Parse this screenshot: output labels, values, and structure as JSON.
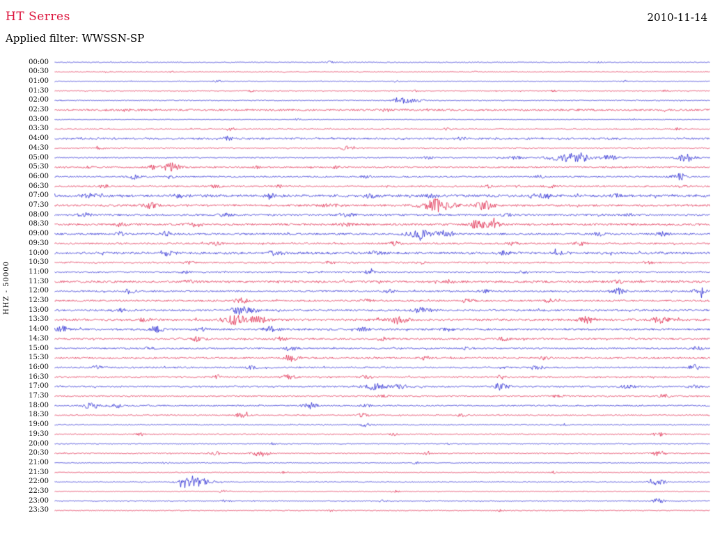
{
  "header": {
    "station": "HT Serres",
    "date": "2010-11-14",
    "filter_label": "Applied filter: WWSSN-SP",
    "channel_label": "HHZ - 50000"
  },
  "colors": {
    "red": "#dc143c",
    "blue": "#1515cd",
    "text": "#000000",
    "background": "#ffffff"
  },
  "chart_data": {
    "type": "line",
    "subtype": "helicorder-seismogram",
    "title": "HT Serres 2010-11-14 continuous seismic record",
    "station": "HT Serres",
    "date": "2010-11-14",
    "filter": "WWSSN-SP",
    "channel": "HHZ",
    "gain": "50000",
    "row_interval_minutes": 30,
    "trace_color_rule": "alternating blue (even rows) / red (odd rows)",
    "rows": [
      {
        "time": "00:00",
        "color": "blue",
        "noise": 0.6,
        "events": [
          [
            0.42,
            1.5,
            4
          ],
          [
            0.83,
            1.5,
            3
          ]
        ]
      },
      {
        "time": "00:30",
        "color": "red",
        "noise": 0.5,
        "events": [
          [
            0.08,
            1.2,
            3
          ],
          [
            0.18,
            1.5,
            3
          ],
          [
            0.35,
            1.2,
            3
          ],
          [
            0.64,
            1.2,
            3
          ]
        ]
      },
      {
        "time": "01:00",
        "color": "blue",
        "noise": 0.6,
        "events": [
          [
            0.25,
            1.8,
            3
          ],
          [
            0.52,
            1.3,
            3
          ],
          [
            0.87,
            1.6,
            3
          ]
        ]
      },
      {
        "time": "01:30",
        "color": "red",
        "noise": 0.6,
        "events": [
          [
            0.3,
            1.5,
            3
          ],
          [
            0.55,
            1.2,
            3
          ],
          [
            0.76,
            1.3,
            3
          ],
          [
            0.93,
            1.5,
            3
          ]
        ]
      },
      {
        "time": "02:00",
        "color": "blue",
        "noise": 0.6,
        "events": [
          [
            0.527,
            4.5,
            7
          ],
          [
            0.545,
            2.5,
            12
          ]
        ]
      },
      {
        "time": "02:30",
        "color": "red",
        "noise": 1.3,
        "events": [
          [
            0.12,
            1.3,
            6
          ],
          [
            0.5,
            1.2,
            6
          ]
        ]
      },
      {
        "time": "03:00",
        "color": "blue",
        "noise": 0.45,
        "events": [
          [
            0.37,
            1.2,
            3
          ],
          [
            0.88,
            1.5,
            3
          ]
        ]
      },
      {
        "time": "03:30",
        "color": "red",
        "noise": 0.8,
        "events": [
          [
            0.27,
            2.0,
            4
          ],
          [
            0.6,
            1.5,
            4
          ],
          [
            0.95,
            1.8,
            4
          ]
        ]
      },
      {
        "time": "04:00",
        "color": "blue",
        "noise": 1.3,
        "events": [
          [
            0.265,
            2.8,
            5
          ],
          [
            0.62,
            1.5,
            5
          ]
        ]
      },
      {
        "time": "04:30",
        "color": "red",
        "noise": 0.8,
        "events": [
          [
            0.445,
            2.4,
            6
          ],
          [
            0.07,
            1.5,
            4
          ]
        ]
      },
      {
        "time": "05:00",
        "color": "blue",
        "noise": 0.8,
        "events": [
          [
            0.57,
            1.8,
            6
          ],
          [
            0.7,
            2.0,
            10
          ],
          [
            0.775,
            4.5,
            16
          ],
          [
            0.8,
            5.5,
            10
          ],
          [
            0.845,
            3.0,
            10
          ],
          [
            0.962,
            6.0,
            8
          ]
        ]
      },
      {
        "time": "05:30",
        "color": "red",
        "noise": 1.0,
        "events": [
          [
            0.05,
            1.8,
            5
          ],
          [
            0.148,
            2.8,
            6
          ],
          [
            0.178,
            6.0,
            9
          ],
          [
            0.31,
            1.5,
            5
          ],
          [
            0.43,
            1.5,
            5
          ]
        ]
      },
      {
        "time": "06:00",
        "color": "blue",
        "noise": 1.0,
        "events": [
          [
            0.12,
            3.0,
            6
          ],
          [
            0.175,
            2.2,
            5
          ],
          [
            0.475,
            1.8,
            5
          ],
          [
            0.74,
            2.0,
            5
          ],
          [
            0.952,
            5.0,
            7
          ]
        ]
      },
      {
        "time": "06:30",
        "color": "red",
        "noise": 1.0,
        "events": [
          [
            0.075,
            2.2,
            5
          ],
          [
            0.245,
            2.5,
            5
          ],
          [
            0.345,
            1.8,
            5
          ],
          [
            0.66,
            2.8,
            6
          ],
          [
            0.755,
            2.2,
            5
          ],
          [
            0.955,
            2.0,
            5
          ]
        ]
      },
      {
        "time": "07:00",
        "color": "blue",
        "noise": 1.7,
        "events": [
          [
            0.055,
            2.5,
            8
          ],
          [
            0.19,
            2.2,
            8
          ],
          [
            0.33,
            2.0,
            8
          ],
          [
            0.48,
            2.0,
            8
          ],
          [
            0.575,
            2.2,
            8
          ],
          [
            0.74,
            2.5,
            8
          ],
          [
            0.86,
            2.0,
            8
          ]
        ]
      },
      {
        "time": "07:30",
        "color": "red",
        "noise": 1.4,
        "events": [
          [
            0.145,
            3.8,
            7
          ],
          [
            0.42,
            2.0,
            8
          ],
          [
            0.58,
            5.5,
            12
          ],
          [
            0.585,
            4.0,
            18
          ],
          [
            0.655,
            6.0,
            9
          ]
        ]
      },
      {
        "time": "08:00",
        "color": "blue",
        "noise": 1.2,
        "events": [
          [
            0.045,
            3.0,
            6
          ],
          [
            0.26,
            2.2,
            6
          ],
          [
            0.445,
            3.0,
            7
          ],
          [
            0.69,
            2.0,
            6
          ],
          [
            0.88,
            2.0,
            6
          ]
        ]
      },
      {
        "time": "08:30",
        "color": "red",
        "noise": 1.4,
        "events": [
          [
            0.1,
            2.5,
            6
          ],
          [
            0.215,
            3.2,
            7
          ],
          [
            0.445,
            2.5,
            6
          ],
          [
            0.645,
            5.5,
            9
          ],
          [
            0.67,
            3.5,
            8
          ]
        ]
      },
      {
        "time": "09:00",
        "color": "blue",
        "noise": 1.3,
        "events": [
          [
            0.1,
            3.0,
            6
          ],
          [
            0.17,
            3.2,
            6
          ],
          [
            0.555,
            6.0,
            12
          ],
          [
            0.595,
            4.5,
            10
          ],
          [
            0.83,
            2.2,
            6
          ],
          [
            0.925,
            2.5,
            6
          ]
        ]
      },
      {
        "time": "09:30",
        "color": "red",
        "noise": 1.1,
        "events": [
          [
            0.245,
            2.0,
            6
          ],
          [
            0.52,
            2.8,
            7
          ],
          [
            0.7,
            2.0,
            6
          ],
          [
            0.8,
            2.2,
            6
          ]
        ]
      },
      {
        "time": "10:00",
        "color": "blue",
        "noise": 1.6,
        "events": [
          [
            0.17,
            3.2,
            8
          ],
          [
            0.335,
            2.8,
            8
          ],
          [
            0.49,
            2.0,
            7
          ],
          [
            0.685,
            2.2,
            7
          ],
          [
            0.77,
            2.0,
            7
          ]
        ]
      },
      {
        "time": "10:30",
        "color": "red",
        "noise": 1.0,
        "events": [
          [
            0.205,
            2.0,
            5
          ],
          [
            0.42,
            1.8,
            5
          ],
          [
            0.56,
            1.8,
            5
          ],
          [
            0.905,
            2.0,
            5
          ]
        ]
      },
      {
        "time": "11:00",
        "color": "blue",
        "noise": 0.9,
        "events": [
          [
            0.2,
            2.0,
            5
          ],
          [
            0.48,
            2.5,
            6
          ],
          [
            0.715,
            1.8,
            5
          ]
        ]
      },
      {
        "time": "11:30",
        "color": "red",
        "noise": 1.5,
        "events": [
          [
            0.2,
            2.2,
            7
          ],
          [
            0.6,
            2.0,
            7
          ],
          [
            0.86,
            2.0,
            7
          ]
        ]
      },
      {
        "time": "12:00",
        "color": "blue",
        "noise": 1.1,
        "events": [
          [
            0.115,
            3.2,
            6
          ],
          [
            0.51,
            2.0,
            6
          ],
          [
            0.655,
            2.0,
            6
          ],
          [
            0.86,
            4.0,
            8
          ],
          [
            0.985,
            4.5,
            7
          ]
        ]
      },
      {
        "time": "12:30",
        "color": "red",
        "noise": 1.2,
        "events": [
          [
            0.285,
            3.5,
            7
          ],
          [
            0.475,
            2.2,
            6
          ],
          [
            0.63,
            2.2,
            6
          ],
          [
            0.755,
            2.0,
            6
          ]
        ]
      },
      {
        "time": "13:00",
        "color": "blue",
        "noise": 1.3,
        "events": [
          [
            0.1,
            2.0,
            6
          ],
          [
            0.28,
            5.0,
            8
          ],
          [
            0.3,
            3.0,
            8
          ],
          [
            0.56,
            3.5,
            9
          ]
        ]
      },
      {
        "time": "13:30",
        "color": "red",
        "noise": 1.5,
        "events": [
          [
            0.14,
            2.5,
            7
          ],
          [
            0.275,
            6.5,
            12
          ],
          [
            0.31,
            4.0,
            10
          ],
          [
            0.525,
            5.5,
            9
          ],
          [
            0.81,
            4.5,
            9
          ],
          [
            0.925,
            5.0,
            8
          ]
        ]
      },
      {
        "time": "14:00",
        "color": "blue",
        "noise": 1.3,
        "events": [
          [
            0.012,
            5.0,
            6
          ],
          [
            0.155,
            4.0,
            7
          ],
          [
            0.225,
            2.5,
            6
          ],
          [
            0.33,
            4.5,
            7
          ],
          [
            0.47,
            2.5,
            6
          ],
          [
            0.6,
            2.0,
            6
          ]
        ]
      },
      {
        "time": "14:30",
        "color": "red",
        "noise": 1.2,
        "events": [
          [
            0.22,
            3.5,
            7
          ],
          [
            0.345,
            2.2,
            6
          ],
          [
            0.5,
            2.0,
            6
          ],
          [
            0.685,
            2.2,
            6
          ]
        ]
      },
      {
        "time": "15:00",
        "color": "blue",
        "noise": 1.0,
        "events": [
          [
            0.145,
            2.0,
            6
          ],
          [
            0.36,
            3.0,
            7
          ],
          [
            0.63,
            2.0,
            6
          ],
          [
            0.98,
            2.8,
            6
          ]
        ]
      },
      {
        "time": "15:30",
        "color": "red",
        "noise": 1.2,
        "events": [
          [
            0.36,
            4.0,
            8
          ],
          [
            0.565,
            2.2,
            6
          ],
          [
            0.745,
            2.5,
            6
          ]
        ]
      },
      {
        "time": "16:00",
        "color": "blue",
        "noise": 1.0,
        "events": [
          [
            0.065,
            2.5,
            6
          ],
          [
            0.3,
            2.0,
            6
          ],
          [
            0.735,
            3.0,
            7
          ],
          [
            0.975,
            3.5,
            6
          ]
        ]
      },
      {
        "time": "16:30",
        "color": "red",
        "noise": 1.0,
        "events": [
          [
            0.245,
            2.2,
            6
          ],
          [
            0.355,
            3.3,
            7
          ],
          [
            0.475,
            2.2,
            6
          ],
          [
            0.68,
            2.5,
            6
          ]
        ]
      },
      {
        "time": "17:00",
        "color": "blue",
        "noise": 1.0,
        "events": [
          [
            0.49,
            5.0,
            11
          ],
          [
            0.53,
            3.0,
            9
          ],
          [
            0.68,
            4.5,
            8
          ],
          [
            0.875,
            3.5,
            7
          ],
          [
            0.975,
            2.5,
            6
          ]
        ]
      },
      {
        "time": "17:30",
        "color": "red",
        "noise": 0.9,
        "events": [
          [
            0.5,
            2.0,
            6
          ],
          [
            0.77,
            2.0,
            6
          ],
          [
            0.93,
            2.8,
            6
          ]
        ]
      },
      {
        "time": "18:00",
        "color": "blue",
        "noise": 0.9,
        "events": [
          [
            0.055,
            4.5,
            8
          ],
          [
            0.095,
            3.0,
            7
          ],
          [
            0.39,
            4.0,
            7
          ],
          [
            0.475,
            2.2,
            6
          ]
        ]
      },
      {
        "time": "18:30",
        "color": "red",
        "noise": 0.8,
        "events": [
          [
            0.285,
            3.5,
            6
          ],
          [
            0.47,
            2.5,
            6
          ],
          [
            0.62,
            1.8,
            5
          ]
        ]
      },
      {
        "time": "19:00",
        "color": "blue",
        "noise": 0.7,
        "events": [
          [
            0.475,
            2.8,
            5
          ],
          [
            0.775,
            1.8,
            5
          ]
        ]
      },
      {
        "time": "19:30",
        "color": "red",
        "noise": 0.8,
        "events": [
          [
            0.13,
            1.8,
            5
          ],
          [
            0.515,
            1.8,
            5
          ],
          [
            0.92,
            2.5,
            6
          ]
        ]
      },
      {
        "time": "20:00",
        "color": "blue",
        "noise": 0.6,
        "events": [
          [
            0.33,
            1.5,
            4
          ],
          [
            0.6,
            1.5,
            4
          ]
        ]
      },
      {
        "time": "20:30",
        "color": "red",
        "noise": 0.7,
        "events": [
          [
            0.245,
            2.5,
            6
          ],
          [
            0.315,
            4.5,
            8
          ],
          [
            0.565,
            1.8,
            5
          ],
          [
            0.92,
            3.5,
            7
          ]
        ]
      },
      {
        "time": "21:00",
        "color": "blue",
        "noise": 0.55,
        "events": [
          [
            0.17,
            1.5,
            4
          ],
          [
            0.55,
            1.5,
            4
          ]
        ]
      },
      {
        "time": "21:30",
        "color": "red",
        "noise": 0.55,
        "events": [
          [
            0.35,
            1.5,
            4
          ],
          [
            0.76,
            1.5,
            4
          ]
        ]
      },
      {
        "time": "22:00",
        "color": "blue",
        "noise": 0.65,
        "events": [
          [
            0.205,
            7.0,
            10
          ],
          [
            0.225,
            4.0,
            12
          ],
          [
            0.92,
            4.5,
            7
          ]
        ]
      },
      {
        "time": "22:30",
        "color": "red",
        "noise": 0.6,
        "events": [
          [
            0.26,
            2.2,
            5
          ],
          [
            0.52,
            1.5,
            4
          ]
        ]
      },
      {
        "time": "23:00",
        "color": "blue",
        "noise": 0.6,
        "events": [
          [
            0.26,
            1.8,
            5
          ],
          [
            0.5,
            1.5,
            4
          ],
          [
            0.92,
            3.5,
            6
          ]
        ]
      },
      {
        "time": "23:30",
        "color": "red",
        "noise": 0.55,
        "events": [
          [
            0.42,
            1.3,
            4
          ],
          [
            0.68,
            1.3,
            4
          ]
        ]
      }
    ]
  }
}
